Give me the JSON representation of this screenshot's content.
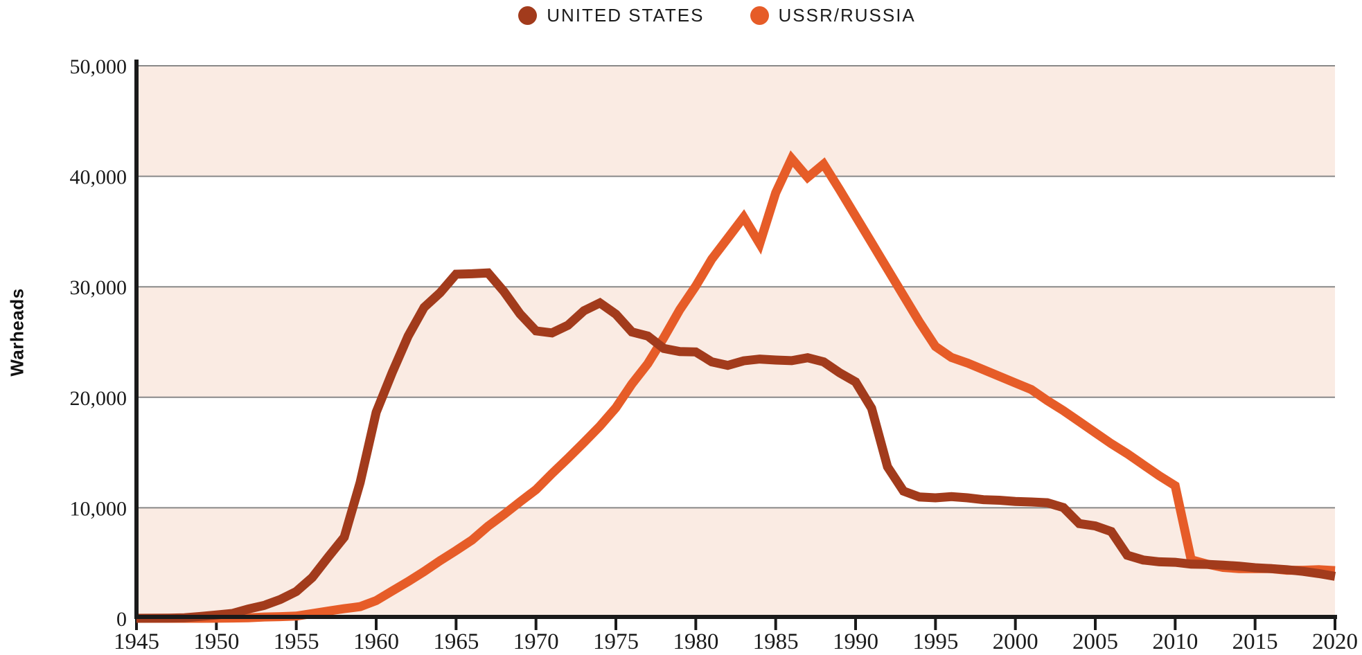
{
  "legend": {
    "items": [
      {
        "label": "UNITED STATES",
        "color": "#A23B1C"
      },
      {
        "label": "USSR/RUSSIA",
        "color": "#E65C28"
      }
    ]
  },
  "y_axis": {
    "title": "Warheads",
    "tick_labels": [
      "0",
      "10,000",
      "20,000",
      "30,000",
      "40,000",
      "50,000"
    ]
  },
  "x_axis": {
    "tick_labels": [
      "1945",
      "1950",
      "1955",
      "1960",
      "1965",
      "1970",
      "1975",
      "1980",
      "1985",
      "1990",
      "1995",
      "2000",
      "2005",
      "2010",
      "2015",
      "2020"
    ]
  },
  "style": {
    "band_color": "#FAEBE3",
    "grid_color": "#888888",
    "axis_color": "#1A1A1A",
    "text_color": "#1A1A1A",
    "us_color": "#A23B1C",
    "ussr_color": "#E65C28"
  },
  "chart_data": {
    "type": "line",
    "title": "",
    "xlabel": "",
    "ylabel": "Warheads",
    "xlim": [
      1945,
      2020
    ],
    "ylim": [
      0,
      50000
    ],
    "grid": "horizontal",
    "legend_position": "top-center",
    "background_bands": [
      [
        0,
        10000
      ],
      [
        20000,
        30000
      ],
      [
        40000,
        50000
      ]
    ],
    "years": [
      1945,
      1946,
      1947,
      1948,
      1949,
      1950,
      1951,
      1952,
      1953,
      1954,
      1955,
      1956,
      1957,
      1958,
      1959,
      1960,
      1961,
      1962,
      1963,
      1964,
      1965,
      1966,
      1967,
      1968,
      1969,
      1970,
      1971,
      1972,
      1973,
      1974,
      1975,
      1976,
      1977,
      1978,
      1979,
      1980,
      1981,
      1982,
      1983,
      1984,
      1985,
      1986,
      1987,
      1988,
      1989,
      1990,
      1991,
      1992,
      1993,
      1994,
      1995,
      1996,
      1997,
      1998,
      1999,
      2000,
      2001,
      2002,
      2003,
      2004,
      2005,
      2006,
      2007,
      2008,
      2009,
      2010,
      2011,
      2012,
      2013,
      2014,
      2015,
      2016,
      2017,
      2018,
      2019,
      2020
    ],
    "series": [
      {
        "name": "USSR/RUSSIA",
        "color": "#E65C28",
        "values": [
          0,
          0,
          0,
          0,
          1,
          5,
          25,
          50,
          120,
          150,
          200,
          426,
          660,
          869,
          1060,
          1605,
          2471,
          3322,
          4238,
          5221,
          6129,
          7089,
          8339,
          9399,
          10538,
          11643,
          13092,
          14478,
          15915,
          17385,
          19055,
          21205,
          23044,
          25393,
          27935,
          30062,
          32500,
          34400,
          36300,
          33900,
          38500,
          41600,
          39900,
          41100,
          38800,
          36400,
          34000,
          31600,
          29200,
          26800,
          24600,
          23600,
          23100,
          22500,
          21900,
          21300,
          20700,
          19700,
          18800,
          17800,
          16800,
          15800,
          14900,
          13900,
          12900,
          12000,
          5300,
          4900,
          4600,
          4500,
          4500,
          4490,
          4350,
          4350,
          4400,
          4315
        ]
      },
      {
        "name": "UNITED STATES",
        "color": "#A23B1C",
        "values": [
          2,
          9,
          13,
          50,
          170,
          299,
          438,
          841,
          1169,
          1703,
          2422,
          3692,
          5543,
          7345,
          12298,
          18638,
          22229,
          25540,
          28133,
          29463,
          31139,
          31175,
          31255,
          29561,
          27552,
          26008,
          25830,
          26516,
          27835,
          28537,
          27519,
          25914,
          25542,
          24418,
          24138,
          24104,
          23208,
          22886,
          23305,
          23459,
          23368,
          23317,
          23575,
          23205,
          22217,
          21392,
          19008,
          13708,
          11511,
          10979,
          10904,
          11011,
          10903,
          10732,
          10685,
          10577,
          10526,
          10457,
          10027,
          8570,
          8360,
          7853,
          5709,
          5273,
          5113,
          5066,
          4897,
          4881,
          4804,
          4717,
          4571,
          4500,
          4400,
          4250,
          4050,
          3800
        ]
      }
    ]
  }
}
